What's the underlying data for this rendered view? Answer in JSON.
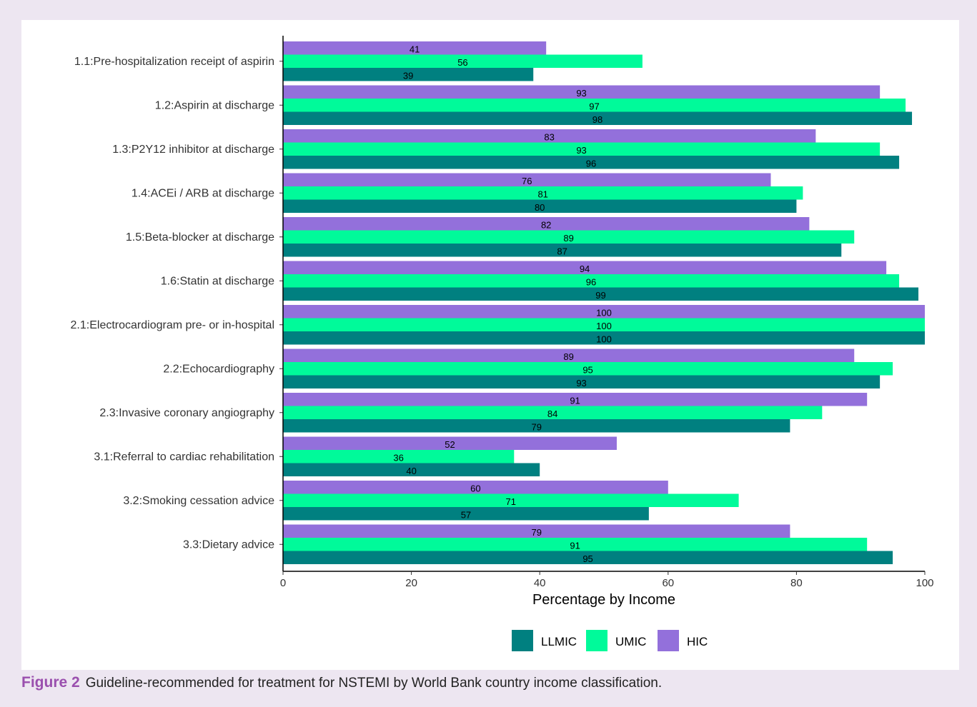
{
  "chart_data": {
    "type": "bar",
    "orientation": "horizontal",
    "categories": [
      "1.1:Pre-hospitalization receipt of aspirin",
      "1.2:Aspirin at discharge",
      "1.3:P2Y12 inhibitor at discharge",
      "1.4:ACEi / ARB at discharge",
      "1.5:Beta-blocker at discharge",
      "1.6:Statin at discharge",
      "2.1:Electrocardiogram pre- or in-hospital",
      "2.2:Echocardiography",
      "2.3:Invasive coronary angiography",
      "3.1:Referral to cardiac rehabilitation",
      "3.2:Smoking cessation advice",
      "3.3:Dietary advice"
    ],
    "series": [
      {
        "name": "HIC",
        "color": "#9370db",
        "values": [
          41,
          93,
          83,
          76,
          82,
          94,
          100,
          89,
          91,
          52,
          60,
          79
        ]
      },
      {
        "name": "UMIC",
        "color": "#00fa9a",
        "values": [
          56,
          97,
          93,
          81,
          89,
          96,
          100,
          95,
          84,
          36,
          71,
          91
        ]
      },
      {
        "name": "LLMIC",
        "color": "#008080",
        "values": [
          39,
          98,
          96,
          80,
          87,
          99,
          100,
          93,
          79,
          40,
          57,
          95
        ]
      }
    ],
    "legend_order": [
      "LLMIC",
      "UMIC",
      "HIC"
    ],
    "xlabel": "Percentage by Income",
    "ylabel": "",
    "xlim": [
      0,
      100
    ],
    "xticks": [
      0,
      20,
      40,
      60,
      80,
      100
    ],
    "grid": false,
    "legend_position": "bottom"
  },
  "caption": {
    "label": "Figure 2",
    "text": "Guideline-recommended for treatment for NSTEMI by World Bank country income classification."
  }
}
